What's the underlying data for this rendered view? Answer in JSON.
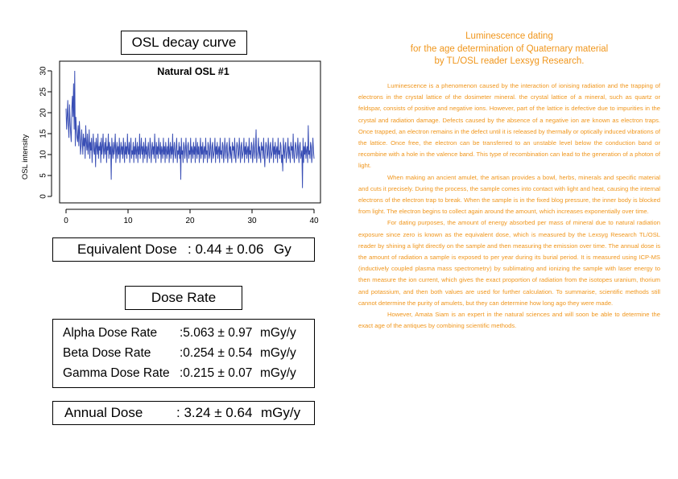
{
  "osl_title": "OSL decay curve",
  "chart_data": {
    "type": "line",
    "title": "Natural OSL #1",
    "xlabel": "",
    "ylabel": "OSL intensity",
    "xlim": [
      0,
      40
    ],
    "ylim": [
      0,
      30
    ],
    "x_ticks": [
      "0",
      "10",
      "20",
      "30",
      "40"
    ],
    "y_ticks": [
      "0",
      "5",
      "10",
      "15",
      "20",
      "25",
      "30"
    ],
    "grid": false,
    "color": "#3a4fb5",
    "y": [
      21,
      16,
      19,
      23,
      17,
      14,
      22,
      18,
      15,
      13,
      21,
      24,
      19,
      27,
      16,
      30,
      12,
      19,
      16,
      14,
      13,
      17,
      12,
      18,
      15,
      10,
      12,
      16,
      13,
      10,
      15,
      12,
      14,
      9,
      17,
      13,
      11,
      15,
      10,
      12,
      16,
      9,
      13,
      11,
      14,
      8,
      12,
      15,
      11,
      10,
      13,
      7,
      14,
      12,
      10,
      15,
      9,
      12,
      11,
      13,
      8,
      14,
      10,
      12,
      15,
      9,
      11,
      13,
      10,
      14,
      8,
      12,
      11,
      15,
      9,
      13,
      10,
      12,
      4,
      14,
      11,
      9,
      13,
      10,
      12,
      15,
      8,
      11,
      13,
      9,
      12,
      10,
      14,
      8,
      11,
      13,
      10,
      12,
      9,
      14,
      11,
      8,
      13,
      10,
      12,
      9,
      15,
      11,
      10,
      13,
      8,
      12,
      14,
      9,
      11,
      10,
      13,
      8,
      12,
      10,
      14,
      9,
      11,
      13,
      8,
      12,
      10,
      15,
      9,
      11,
      14,
      10,
      12,
      8,
      13,
      11,
      9,
      14,
      10,
      12,
      8,
      11,
      13,
      10,
      9,
      14,
      12,
      8,
      11,
      13,
      10,
      12,
      9,
      15,
      11,
      8,
      13,
      10,
      12,
      9,
      14,
      11,
      10,
      13,
      8,
      12,
      11,
      9,
      14,
      10,
      12,
      8,
      13,
      11,
      9,
      12,
      10,
      14,
      8,
      11,
      13,
      9,
      12,
      10,
      15,
      8,
      11,
      13,
      10,
      9,
      12,
      14,
      8,
      11,
      10,
      13,
      9,
      12,
      4,
      14,
      10,
      11,
      8,
      13,
      12,
      9,
      11,
      14,
      10,
      8,
      12,
      13,
      9,
      11,
      10,
      14,
      8,
      12,
      11,
      9,
      13,
      10,
      12,
      8,
      14,
      11,
      9,
      13,
      10,
      12,
      8,
      11,
      14,
      9,
      12,
      10,
      13,
      8,
      11,
      12,
      9,
      14,
      10,
      11,
      8,
      13,
      12,
      9,
      10,
      14,
      11,
      8,
      12,
      13,
      9,
      10,
      11,
      14,
      8,
      12,
      10,
      13,
      9,
      11,
      12,
      8,
      14,
      10,
      11,
      9,
      13,
      12,
      8,
      10,
      14,
      11,
      9,
      12,
      13,
      8,
      10,
      11,
      14,
      9,
      12,
      10,
      8,
      13,
      11,
      12,
      9,
      14,
      10,
      8,
      11,
      13,
      12,
      9,
      10,
      14,
      11,
      8,
      12,
      13,
      9,
      10,
      11,
      14,
      8,
      12,
      10,
      13,
      9,
      11,
      12,
      8,
      14,
      10,
      11,
      9,
      13,
      12,
      8,
      10,
      14,
      11,
      9,
      12,
      16,
      8,
      10,
      11,
      14,
      9,
      12,
      10,
      8,
      13,
      11,
      12,
      9,
      14,
      10,
      7,
      11,
      13,
      12,
      9,
      10,
      14,
      11,
      8,
      12,
      13,
      9,
      10,
      11,
      14,
      8,
      12,
      10,
      13,
      9,
      11,
      12,
      8,
      14,
      10,
      11,
      9,
      13,
      12,
      8,
      10,
      6,
      14,
      11,
      9,
      12,
      13,
      8,
      10,
      11,
      14,
      9,
      12,
      10,
      8,
      13,
      11,
      12,
      9,
      15,
      10,
      8,
      11,
      13,
      12,
      9,
      10,
      14,
      11,
      8,
      12,
      13,
      9,
      10,
      11,
      2,
      14,
      8,
      12,
      10,
      13,
      9,
      11,
      12,
      8,
      17,
      10,
      11,
      9,
      13,
      12,
      8,
      10,
      14,
      11,
      9
    ]
  },
  "equivalent_dose": {
    "label": "Equivalent Dose",
    "value": ": 0.44 ± 0.06",
    "unit": "Gy"
  },
  "dose_rate_title": "Dose Rate",
  "dose_rates": [
    {
      "label": "Alpha Dose Rate",
      "value": ":5.063 ± 0.97",
      "unit": "mGy/y"
    },
    {
      "label": "Beta Dose Rate",
      "value": ":0.254 ± 0.54",
      "unit": "mGy/y"
    },
    {
      "label": "Gamma Dose Rate",
      "value": ":0.215 ± 0.07",
      "unit": "mGy/y"
    }
  ],
  "annual_dose": {
    "label": "Annual Dose",
    "value": ": 3.24 ± 0.64",
    "unit": "mGy/y"
  },
  "article": {
    "title_lines": [
      "Luminescence dating",
      "for the age determination of Quaternary material",
      "by TL/OSL reader Lexsyg Research."
    ],
    "paragraphs": [
      "Luminescence is a phenomenon caused by the interaction of ionising radiation and the trapping of electrons in the crystal lattice of the dosimeter mineral. the crystal lattice of a mineral, such as quartz or feldspar, consists of positive and negative ions. However, part of the lattice is defective due to impurities in the crystal and radiation damage. Defects caused by the absence of a negative ion are known as electron traps. Once trapped, an electron remains in the defect until it is released by thermally or optically induced vibrations of the lattice. Once free, the electron can be transferred to an unstable level below the conduction band or recombine with a hole in the valence band. This type of recombination can lead to the generation of a photon of light.",
      "When making an ancient amulet, the artisan provides a bowl, herbs, minerals and specific material and cuts it precisely. During the process, the sample comes into contact with light and heat, causing the internal electrons of the electron trap to break. When the sample is in the fixed blog pressure, the inner body is blocked from light. The electron begins to collect again around the amount, which increases exponentially over time.",
      "For dating purposes, the amount of energy absorbed per mass of mineral due to natural radiation exposure since zero is known as the equivalent dose, which is measured by the Lexsyg Research TL/OSL reader by shining a light directly on the sample and then measuring the emission over time. The annual dose is the amount of radiation a sample is exposed to per year during its burial period. It is measured using ICP-MS (inductively coupled plasma mass spectrometry) by sublimating and ionizing the sample with laser energy to then measure the ion current, which gives the exact proportion of radiation from the isotopes uranium, thorium and potassium, and then both values are used for further calculation. To summarise, scientific methods still cannot determine the purity of amulets, but they can determine how long ago they were made.",
      "However, Amata Siam is an expert in the natural sciences and will soon be able to determine the exact age of the antiques by combining scientific methods."
    ]
  }
}
